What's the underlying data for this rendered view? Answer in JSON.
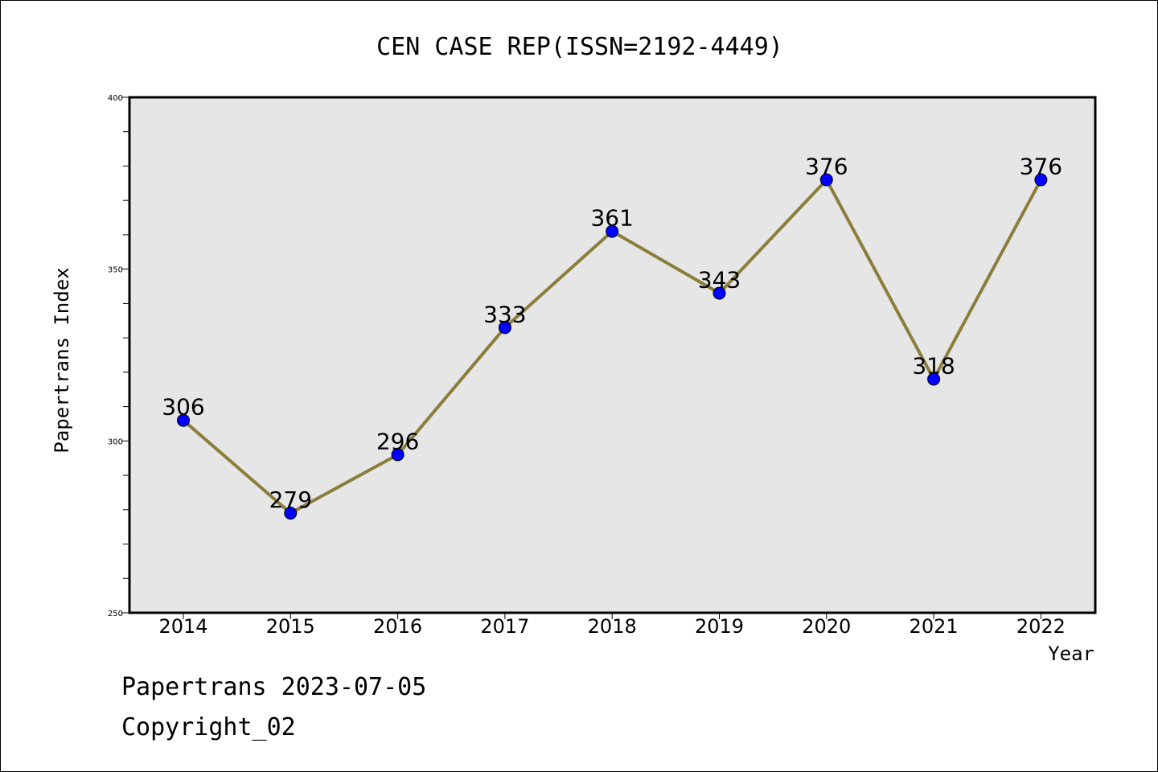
{
  "chart_data": {
    "type": "line",
    "title": "CEN CASE REP(ISSN=2192-4449)",
    "xlabel": "Year",
    "ylabel": "Papertrans Index",
    "categories": [
      "2014",
      "2015",
      "2016",
      "2017",
      "2018",
      "2019",
      "2020",
      "2021",
      "2022"
    ],
    "series": [
      {
        "values": [
          306,
          279,
          296,
          333,
          361,
          343,
          376,
          318,
          376
        ]
      }
    ],
    "ylim": [
      250,
      400
    ],
    "yticks": [
      "250",
      "300",
      "350",
      "400"
    ],
    "y_minor_step": 10,
    "grid": false,
    "data_labels": true,
    "colors": {
      "plot_background": "#e6e6e6",
      "line": "#8b7d3a",
      "marker": "#0000ff"
    }
  },
  "footer": {
    "line1": "Papertrans 2023-07-05",
    "line2": "Copyright_02"
  }
}
